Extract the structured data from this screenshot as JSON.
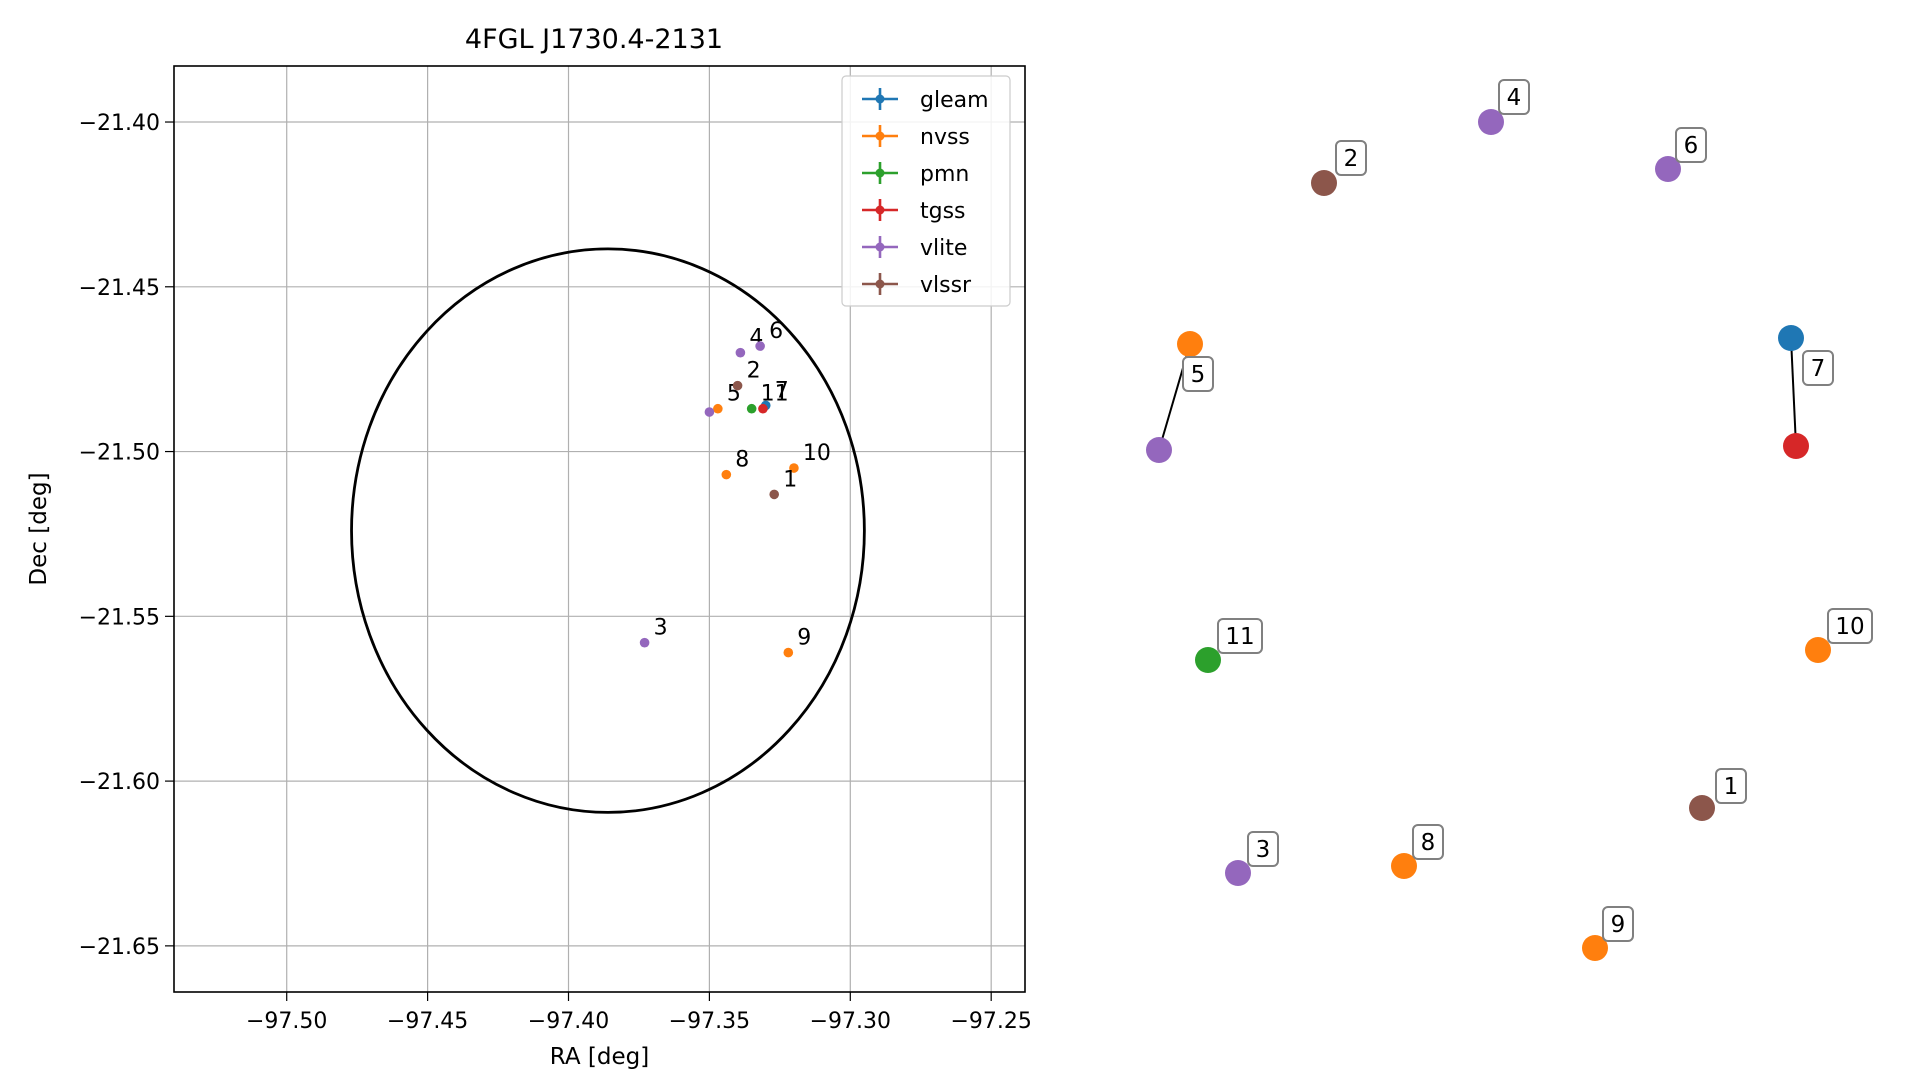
{
  "chart_data": [
    {
      "type": "scatter",
      "title": "4FGL J1730.4-2131",
      "xlabel": "RA [deg]",
      "ylabel": "Dec [deg]",
      "xlim": [
        -97.54,
        -97.238
      ],
      "ylim": [
        -21.664,
        -21.383
      ],
      "x_ticks": [
        -97.5,
        -97.45,
        -97.4,
        -97.35,
        -97.3,
        -97.25
      ],
      "y_ticks": [
        -21.4,
        -21.45,
        -21.5,
        -21.55,
        -21.6,
        -21.65
      ],
      "x_tick_labels": [
        "−97.50",
        "−97.45",
        "−97.40",
        "−97.35",
        "−97.30",
        "−97.25"
      ],
      "y_tick_labels": [
        "−21.40",
        "−21.45",
        "−21.50",
        "−21.55",
        "−21.60",
        "−21.65"
      ],
      "grid": true,
      "legend_position": "top-right",
      "ellipse": {
        "center_ra": -97.386,
        "center_dec": -21.524,
        "semi_axis_ra": 0.091,
        "semi_axis_dec": 0.0855
      },
      "series": [
        {
          "name": "gleam",
          "color": "#1f77b4",
          "points": [
            {
              "label": "7",
              "ra": -97.33,
              "dec": -21.486
            }
          ]
        },
        {
          "name": "nvss",
          "color": "#ff7f0e",
          "points": [
            {
              "label": "5",
              "ra": -97.347,
              "dec": -21.487
            },
            {
              "label": "8",
              "ra": -97.344,
              "dec": -21.507
            },
            {
              "label": "10",
              "ra": -97.32,
              "dec": -21.505
            },
            {
              "label": "9",
              "ra": -97.322,
              "dec": -21.561
            }
          ]
        },
        {
          "name": "pmn",
          "color": "#2ca02c",
          "points": [
            {
              "label": "11",
              "ra": -97.335,
              "dec": -21.487
            }
          ]
        },
        {
          "name": "tgss",
          "color": "#d62728",
          "points": [
            {
              "label": "",
              "ra": -97.331,
              "dec": -21.487
            }
          ]
        },
        {
          "name": "vlite",
          "color": "#9467bd",
          "points": [
            {
              "label": "4",
              "ra": -97.339,
              "dec": -21.47
            },
            {
              "label": "6",
              "ra": -97.332,
              "dec": -21.468
            },
            {
              "label": "",
              "ra": -97.35,
              "dec": -21.488
            },
            {
              "label": "3",
              "ra": -97.373,
              "dec": -21.558
            }
          ]
        },
        {
          "name": "vlssr",
          "color": "#8c564b",
          "points": [
            {
              "label": "2",
              "ra": -97.34,
              "dec": -21.48
            },
            {
              "label": "1",
              "ra": -97.327,
              "dec": -21.513
            }
          ]
        }
      ]
    },
    {
      "type": "scatter",
      "title": "",
      "markers": [
        {
          "label": "1",
          "color": "#8c564b"
        },
        {
          "label": "2",
          "color": "#8c564b"
        },
        {
          "label": "3",
          "color": "#9467bd"
        },
        {
          "label": "4",
          "color": "#9467bd"
        },
        {
          "label": "5",
          "color": "#ff7f0e"
        },
        {
          "label": "",
          "color": "#9467bd"
        },
        {
          "label": "6",
          "color": "#9467bd"
        },
        {
          "label": "7",
          "color": "#1f77b4"
        },
        {
          "label": "",
          "color": "#d62728"
        },
        {
          "label": "8",
          "color": "#ff7f0e"
        },
        {
          "label": "9",
          "color": "#ff7f0e"
        },
        {
          "label": "10",
          "color": "#ff7f0e"
        },
        {
          "label": "11",
          "color": "#2ca02c"
        }
      ]
    }
  ]
}
